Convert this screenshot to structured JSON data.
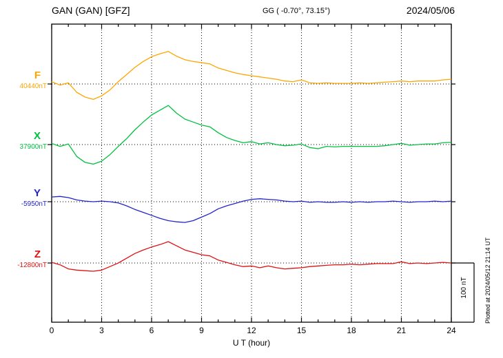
{
  "annotations": {
    "plotted_at": "Plotted at 2024/05/12 21:14 UT"
  },
  "chart_data": {
    "type": "line",
    "title": "GAN (GAN)  [GFZ]",
    "coords": "GG ( -0.70°,  73.15°)",
    "date": "2024/05/06",
    "xlabel": "U T (hour)",
    "x_range": [
      0,
      24
    ],
    "x_ticks": [
      0,
      3,
      6,
      9,
      12,
      15,
      18,
      21,
      24
    ],
    "x_start": 0,
    "x_step": 0.5,
    "grid": "dotted vertical lines at 3h intervals, dotted horizontal baseline per component",
    "legend_position": "left margin, one colored label per stacked trace",
    "scale_bar": {
      "label": "100 nT",
      "nT": 100
    },
    "values_note": "values are deviations in nT from each component baseline value",
    "series": [
      {
        "name": "F",
        "base_label": "40440nT",
        "base_value": 40440,
        "unit": "nT",
        "color": "#ffa500",
        "values": [
          4,
          -2,
          2,
          -14,
          -22,
          -26,
          -20,
          -10,
          4,
          16,
          28,
          38,
          46,
          51,
          55,
          47,
          41,
          38,
          36,
          34,
          27,
          23,
          19,
          16,
          14,
          12,
          10,
          8,
          5,
          4,
          7,
          2,
          1,
          2,
          1,
          1,
          1,
          2,
          1,
          2,
          3,
          4,
          5,
          4,
          5,
          5,
          5,
          7,
          8
        ]
      },
      {
        "name": "X",
        "base_label": "37900nT",
        "base_value": 37900,
        "unit": "nT",
        "color": "#00c040",
        "values": [
          2,
          -3,
          1,
          -20,
          -30,
          -33,
          -28,
          -17,
          -3,
          10,
          25,
          38,
          50,
          58,
          66,
          53,
          43,
          38,
          33,
          30,
          20,
          12,
          7,
          3,
          5,
          1,
          3,
          0,
          -2,
          -1,
          1,
          -5,
          -7,
          -3,
          -4,
          -3,
          -3,
          -3,
          -3,
          -3,
          -2,
          0,
          2,
          -1,
          0,
          1,
          1,
          3,
          4
        ]
      },
      {
        "name": "Y",
        "base_label": "-5950nT",
        "base_value": -5950,
        "unit": "nT",
        "color": "#2222cc",
        "values": [
          8,
          9,
          7,
          3,
          1,
          0,
          1,
          0,
          -2,
          -7,
          -13,
          -18,
          -23,
          -28,
          -32,
          -34,
          -35,
          -32,
          -26,
          -20,
          -12,
          -7,
          -3,
          1,
          4,
          5,
          4,
          3,
          1,
          0,
          1,
          -1,
          0,
          -1,
          -1,
          0,
          -1,
          0,
          -1,
          0,
          0,
          1,
          0,
          -1,
          0,
          0,
          1,
          0,
          1
        ]
      },
      {
        "name": "Z",
        "base_label": "-12800nT",
        "base_value": -12800,
        "unit": "nT",
        "color": "#e01010",
        "values": [
          1,
          -3,
          -10,
          -12,
          -13,
          -14,
          -12,
          -6,
          0,
          8,
          16,
          22,
          27,
          31,
          36,
          29,
          22,
          18,
          14,
          12,
          5,
          1,
          -3,
          -6,
          -5,
          -8,
          -5,
          -8,
          -10,
          -9,
          -8,
          -6,
          -5,
          -4,
          -3,
          -3,
          -2,
          -3,
          -2,
          -1,
          -1,
          -1,
          2,
          -1,
          0,
          -1,
          0,
          1,
          0
        ]
      }
    ]
  }
}
